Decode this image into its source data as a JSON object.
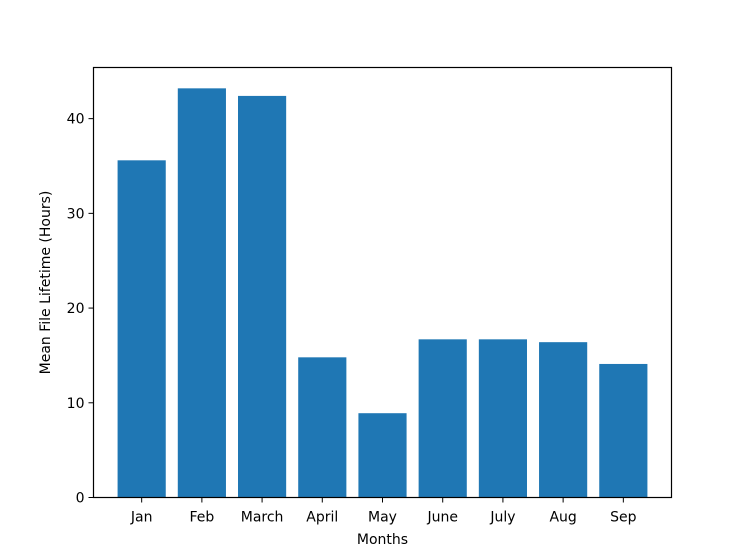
{
  "chart_data": {
    "type": "bar",
    "title": "",
    "xlabel": "Months",
    "ylabel": "Mean File Lifetime (Hours)",
    "categories": [
      "Jan",
      "Feb",
      "March",
      "April",
      "May",
      "June",
      "July",
      "Aug",
      "Sep"
    ],
    "values": [
      35.6,
      43.2,
      42.4,
      14.8,
      8.9,
      16.7,
      16.7,
      16.4,
      14.1
    ],
    "ylim": [
      0,
      45.4
    ],
    "yticks": [
      0,
      10,
      20,
      30,
      40
    ],
    "grid": false,
    "legend": "none",
    "bar_color": "#1f77b4"
  }
}
